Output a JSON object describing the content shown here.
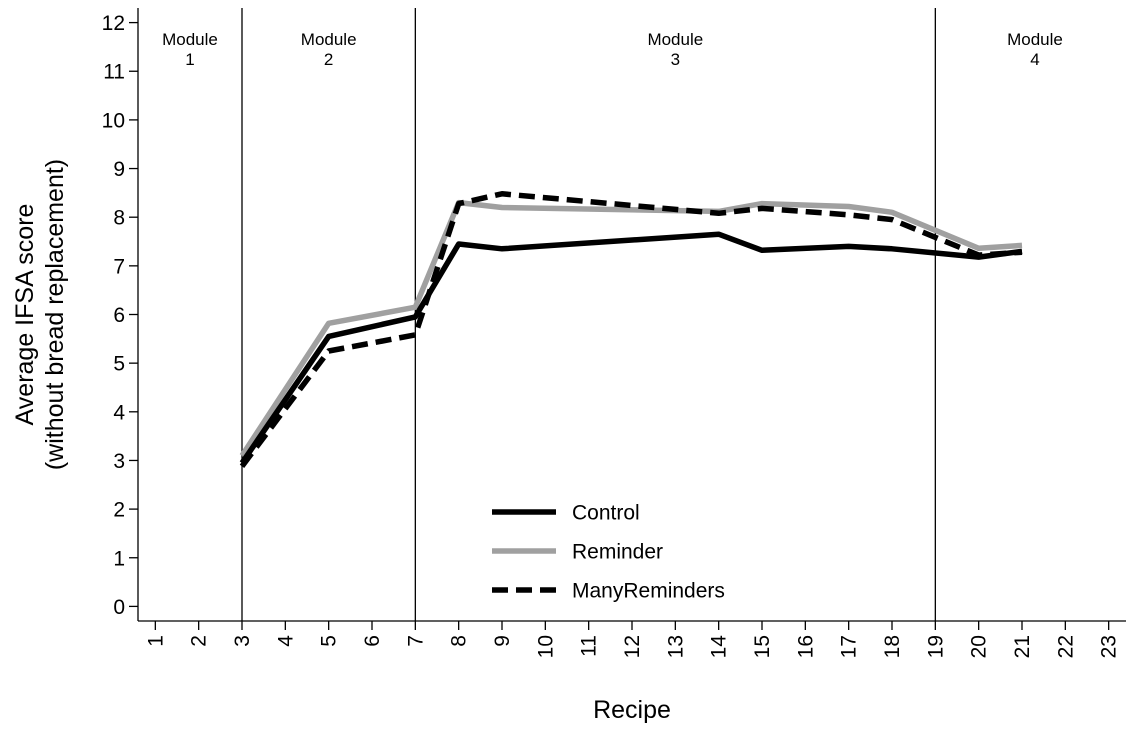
{
  "chart_data": {
    "type": "line",
    "xlabel": "Recipe",
    "ylabel_lines": [
      "Average IFSA score",
      "(without bread replacement)"
    ],
    "x_ticks": [
      1,
      2,
      3,
      4,
      5,
      6,
      7,
      8,
      9,
      10,
      11,
      12,
      13,
      14,
      15,
      16,
      17,
      18,
      19,
      20,
      21,
      22,
      23
    ],
    "y_ticks": [
      0,
      1,
      2,
      3,
      4,
      5,
      6,
      7,
      8,
      9,
      10,
      11,
      12
    ],
    "xlim": [
      0.6,
      23.4
    ],
    "ylim": [
      -0.3,
      12.3
    ],
    "grid": false,
    "legend_position": "bottom-center",
    "module_boundaries": [
      3,
      7,
      19
    ],
    "modules": [
      {
        "word": "Module",
        "number": "1",
        "x": 1.8
      },
      {
        "word": "Module",
        "number": "2",
        "x": 5
      },
      {
        "word": "Module",
        "number": "3",
        "x": 13
      },
      {
        "word": "Module",
        "number": "4",
        "x": 21.3
      }
    ],
    "series": [
      {
        "name": "Control",
        "color": "#000000",
        "dashed": false,
        "x": [
          3,
          5,
          7,
          8,
          9,
          14,
          15,
          17,
          18,
          20,
          21
        ],
        "y": [
          2.95,
          5.55,
          5.95,
          7.45,
          7.35,
          7.65,
          7.32,
          7.4,
          7.35,
          7.18,
          7.3
        ]
      },
      {
        "name": "Reminder",
        "color": "#a0a0a0",
        "dashed": false,
        "x": [
          3,
          5,
          7,
          8,
          9,
          14,
          15,
          17,
          18,
          20,
          21
        ],
        "y": [
          3.1,
          5.82,
          6.15,
          8.3,
          8.2,
          8.12,
          8.28,
          8.22,
          8.1,
          7.36,
          7.42
        ]
      },
      {
        "name": "ManyReminders",
        "color": "#000000",
        "dashed": true,
        "x": [
          3,
          5,
          7,
          8,
          9,
          14,
          15,
          17,
          18,
          20,
          21
        ],
        "y": [
          2.88,
          5.25,
          5.58,
          8.28,
          8.48,
          8.08,
          8.18,
          8.05,
          7.95,
          7.22,
          7.28
        ]
      }
    ]
  }
}
